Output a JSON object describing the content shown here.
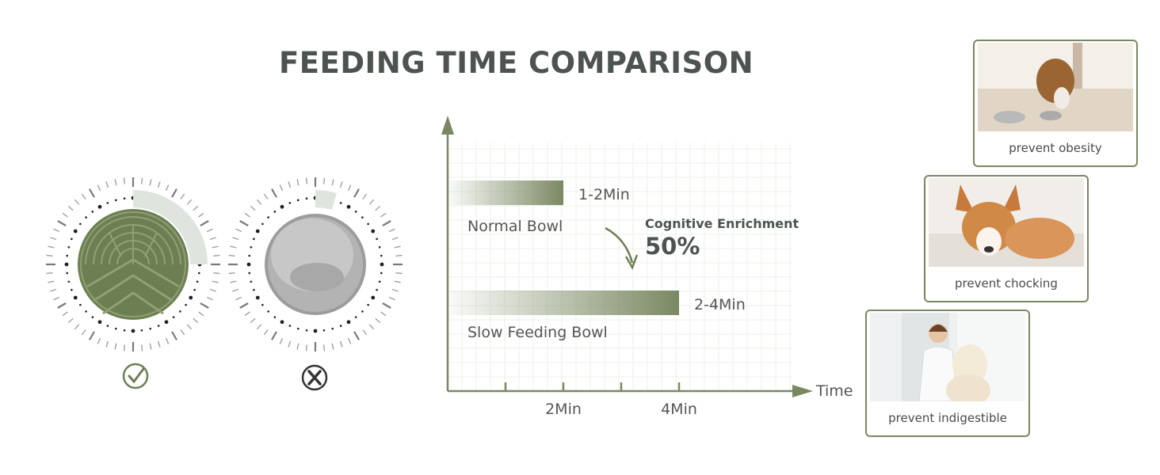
{
  "title": "FEEDING TIME COMPARISON",
  "colors": {
    "accent": "#7a8862",
    "dark": "#4d5450",
    "bowl_green": "#6d7f52",
    "bowl_gray": "#9c9c9c"
  },
  "comparison": {
    "slow_bowl_mark": "check-circle-icon",
    "normal_bowl_mark": "cross-circle-icon"
  },
  "chart_data": {
    "type": "bar",
    "orientation": "horizontal",
    "xlabel": "Time",
    "ylabel": "",
    "x_unit": "Min",
    "xlim": [
      0,
      6
    ],
    "x_ticks": [
      1,
      2,
      3,
      4
    ],
    "x_tick_labels": [
      {
        "value": 2,
        "label": "2Min"
      },
      {
        "value": 4,
        "label": "4Min"
      }
    ],
    "categories": [
      "Normal Bowl",
      "Slow Feeding Bowl"
    ],
    "values": [
      2,
      4
    ],
    "value_labels": [
      "1-2Min",
      "2-4Min"
    ],
    "grid": true,
    "annotation": {
      "label": "Cognitive Enrichment",
      "value": "50%"
    }
  },
  "cards": [
    {
      "caption": "prevent obesity",
      "image": "dog-eating-from-bowl"
    },
    {
      "caption": "prevent chocking",
      "image": "corgi-on-carpet"
    },
    {
      "caption": "prevent indigestible",
      "image": "vet-with-golden-retriever"
    }
  ]
}
